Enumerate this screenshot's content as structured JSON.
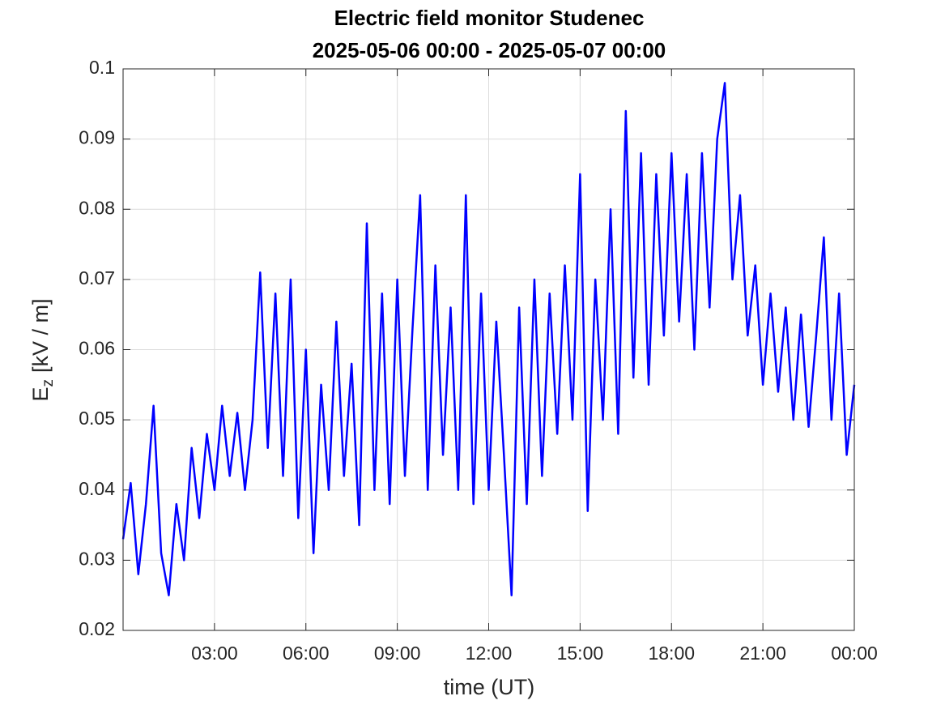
{
  "chart_data": {
    "type": "line",
    "title": "Electric field monitor Studenec",
    "subtitle": "2025-05-06 00:00 - 2025-05-07 00:00",
    "xlabel": "time (UT)",
    "ylabel": {
      "main": "E",
      "sub": "z",
      "unit": "[kV / m]"
    },
    "xlim": [
      0,
      24
    ],
    "xticks": [
      {
        "value": 3,
        "label": "03:00"
      },
      {
        "value": 6,
        "label": "06:00"
      },
      {
        "value": 9,
        "label": "09:00"
      },
      {
        "value": 12,
        "label": "12:00"
      },
      {
        "value": 15,
        "label": "15:00"
      },
      {
        "value": 18,
        "label": "18:00"
      },
      {
        "value": 21,
        "label": "21:00"
      },
      {
        "value": 24,
        "label": "00:00"
      }
    ],
    "ylim": [
      0.02,
      0.1
    ],
    "yticks": [
      0.02,
      0.03,
      0.04,
      0.05,
      0.06,
      0.07,
      0.08,
      0.09,
      0.1
    ],
    "grid": true,
    "x": [
      0,
      0.25,
      0.5,
      0.75,
      1,
      1.25,
      1.5,
      1.75,
      2,
      2.25,
      2.5,
      2.75,
      3,
      3.25,
      3.5,
      3.75,
      4,
      4.25,
      4.5,
      4.75,
      5,
      5.25,
      5.5,
      5.75,
      6,
      6.25,
      6.5,
      6.75,
      7,
      7.25,
      7.5,
      7.75,
      8,
      8.25,
      8.5,
      8.75,
      9,
      9.25,
      9.5,
      9.75,
      10,
      10.25,
      10.5,
      10.75,
      11,
      11.25,
      11.5,
      11.75,
      12,
      12.25,
      12.5,
      12.75,
      13,
      13.25,
      13.5,
      13.75,
      14,
      14.25,
      14.5,
      14.75,
      15,
      15.25,
      15.5,
      15.75,
      16,
      16.25,
      16.5,
      16.75,
      17,
      17.25,
      17.5,
      17.75,
      18,
      18.25,
      18.5,
      18.75,
      19,
      19.25,
      19.5,
      19.75,
      20,
      20.25,
      20.5,
      20.75,
      21,
      21.25,
      21.5,
      21.75,
      22,
      22.25,
      22.5,
      22.75,
      23,
      23.25,
      23.5,
      23.75,
      24
    ],
    "series": [
      {
        "name": "Ez",
        "color": "#0000ff",
        "values": [
          0.033,
          0.041,
          0.028,
          0.038,
          0.052,
          0.031,
          0.025,
          0.038,
          0.03,
          0.046,
          0.036,
          0.048,
          0.04,
          0.052,
          0.042,
          0.051,
          0.04,
          0.05,
          0.071,
          0.046,
          0.068,
          0.042,
          0.07,
          0.036,
          0.06,
          0.031,
          0.055,
          0.04,
          0.064,
          0.042,
          0.058,
          0.035,
          0.078,
          0.04,
          0.068,
          0.038,
          0.07,
          0.042,
          0.063,
          0.082,
          0.04,
          0.072,
          0.045,
          0.066,
          0.04,
          0.082,
          0.038,
          0.068,
          0.04,
          0.064,
          0.045,
          0.025,
          0.066,
          0.038,
          0.07,
          0.042,
          0.068,
          0.048,
          0.072,
          0.05,
          0.085,
          0.037,
          0.07,
          0.05,
          0.08,
          0.048,
          0.094,
          0.056,
          0.088,
          0.055,
          0.085,
          0.062,
          0.088,
          0.064,
          0.085,
          0.06,
          0.088,
          0.066,
          0.09,
          0.098,
          0.07,
          0.082,
          0.062,
          0.072,
          0.055,
          0.068,
          0.054,
          0.066,
          0.05,
          0.065,
          0.049,
          0.062,
          0.076,
          0.05,
          0.068,
          0.045,
          0.055
        ]
      }
    ]
  }
}
